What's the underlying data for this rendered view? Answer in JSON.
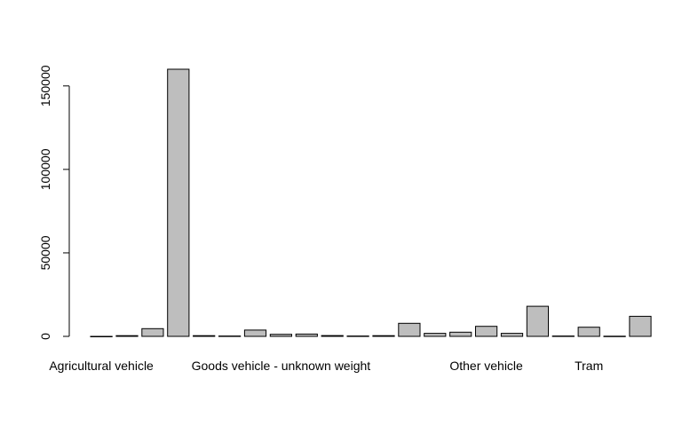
{
  "chart_data": {
    "type": "bar",
    "title": "",
    "xlabel": "",
    "ylabel": "",
    "ylim": [
      0,
      160000
    ],
    "bar_color": "#bebebe",
    "categories": [
      "Agricultural vehicle",
      "",
      "",
      "",
      "",
      "",
      "",
      "Goods vehicle - unknown weight",
      "",
      "",
      "",
      "",
      "",
      "",
      "",
      "Other vehicle",
      "",
      "",
      "",
      "Tram",
      "",
      ""
    ],
    "values": [
      0,
      400,
      4600,
      160000,
      400,
      200,
      3800,
      1200,
      1400,
      500,
      200,
      400,
      7800,
      1800,
      2500,
      6000,
      1800,
      18000,
      200,
      5500,
      100,
      12000
    ],
    "yticks": [
      0,
      50000,
      100000,
      150000
    ],
    "ytick_labels": [
      "0",
      "50000",
      "100000",
      "150000"
    ],
    "visible_labels": [
      {
        "index": 0,
        "text": "Agricultural vehicle"
      },
      {
        "index": 7,
        "text": "Goods vehicle - unknown weight"
      },
      {
        "index": 15,
        "text": "Other vehicle"
      },
      {
        "index": 19,
        "text": "Tram"
      }
    ]
  }
}
